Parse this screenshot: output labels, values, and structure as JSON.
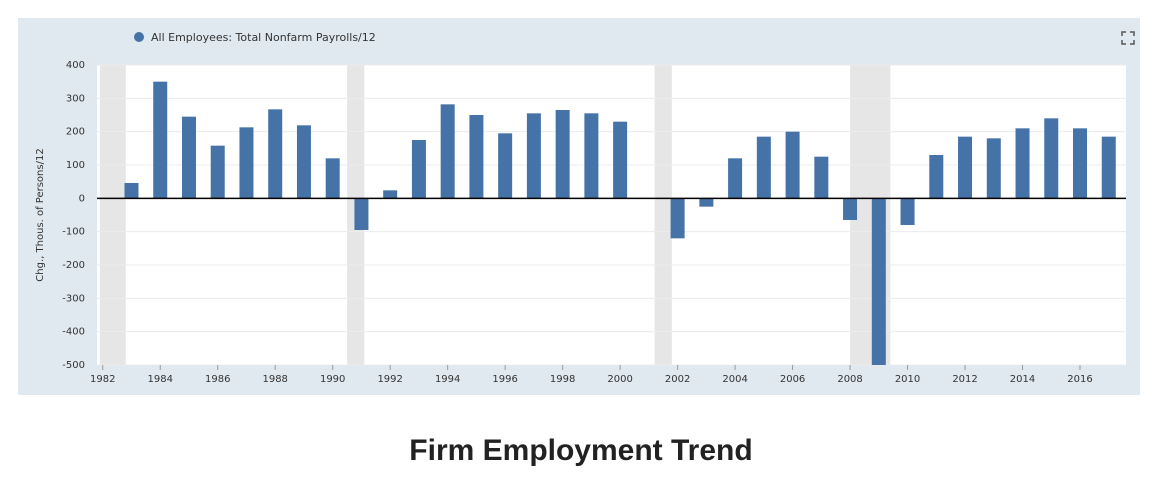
{
  "chart_data": {
    "type": "bar",
    "title": "Firm Employment Trend",
    "y_label": "Chg., Thous. of Persons/12",
    "x": [
      1983,
      1984,
      1985,
      1986,
      1987,
      1988,
      1989,
      1990,
      1991,
      1992,
      1993,
      1994,
      1995,
      1996,
      1997,
      1998,
      1999,
      2000,
      2001,
      2002,
      2003,
      2004,
      2005,
      2006,
      2007,
      2008,
      2009,
      2010,
      2011,
      2012,
      2013,
      2014,
      2015,
      2016,
      2017
    ],
    "series": [
      {
        "name": "All Employees: Total Nonfarm Payrolls/12",
        "color": "#4572a7",
        "values": [
          46,
          350,
          245,
          158,
          213,
          267,
          219,
          120,
          -95,
          24,
          175,
          282,
          250,
          195,
          255,
          265,
          255,
          230,
          null,
          -120,
          -25,
          120,
          185,
          200,
          125,
          -65,
          -500,
          -80,
          130,
          185,
          180,
          210,
          240,
          210,
          185
        ]
      }
    ],
    "recessions": [
      [
        1981.9,
        1982.8
      ],
      [
        1990.5,
        1991.1
      ],
      [
        2001.2,
        2001.8
      ],
      [
        2008.0,
        2009.4
      ]
    ],
    "xlim": [
      1981.8,
      2017.6
    ],
    "xticks": [
      1982,
      1984,
      1986,
      1988,
      1990,
      1992,
      1994,
      1996,
      1998,
      2000,
      2002,
      2004,
      2006,
      2008,
      2010,
      2012,
      2014,
      2016
    ],
    "ylim": [
      -500,
      400
    ],
    "yticks": [
      -500,
      -400,
      -300,
      -200,
      -100,
      0,
      100,
      200,
      300,
      400
    ],
    "grid": true
  }
}
